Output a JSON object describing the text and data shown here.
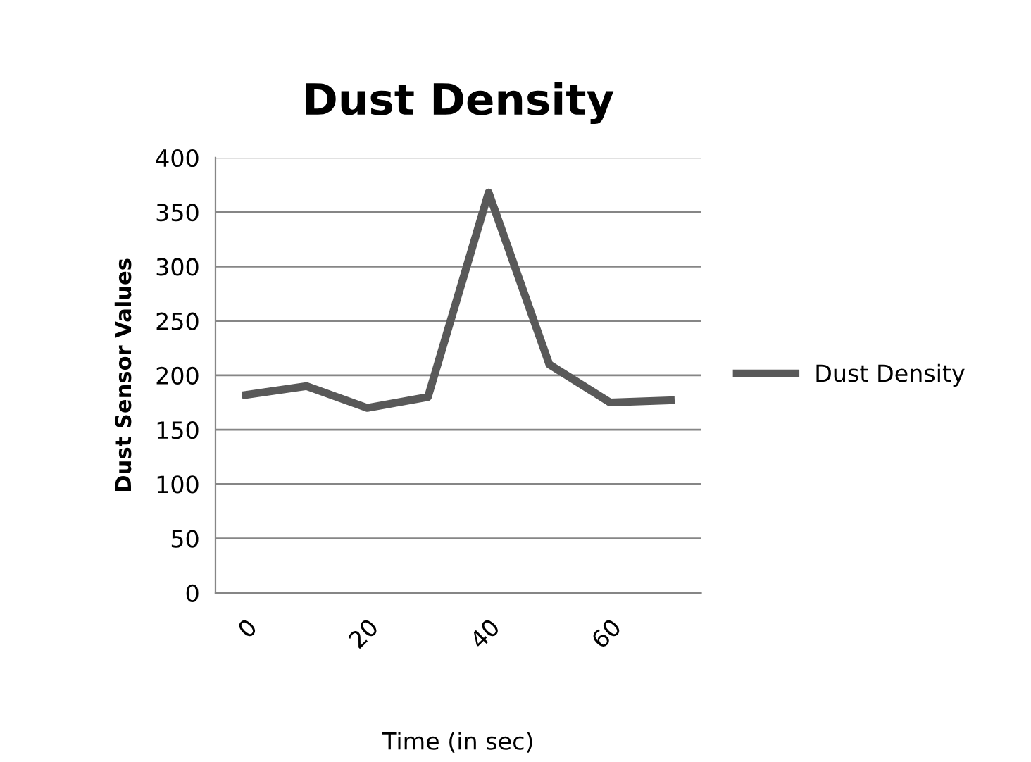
{
  "chart_data": {
    "type": "line",
    "title": "Dust Density",
    "xlabel": "Time (in sec)",
    "ylabel": "Dust Sensor Values",
    "categories": [
      "0",
      null,
      "20",
      null,
      "40",
      null,
      "60",
      null
    ],
    "series": [
      {
        "name": "Dust Density",
        "color": "#595959",
        "values": [
          182,
          190,
          170,
          180,
          368,
          210,
          175,
          177
        ]
      }
    ],
    "ylim": [
      0,
      400
    ],
    "yticks": [
      0,
      50,
      100,
      150,
      200,
      250,
      300,
      350,
      400
    ],
    "grid": "y",
    "legend": "right",
    "marker": "none",
    "line_style": "solid"
  }
}
